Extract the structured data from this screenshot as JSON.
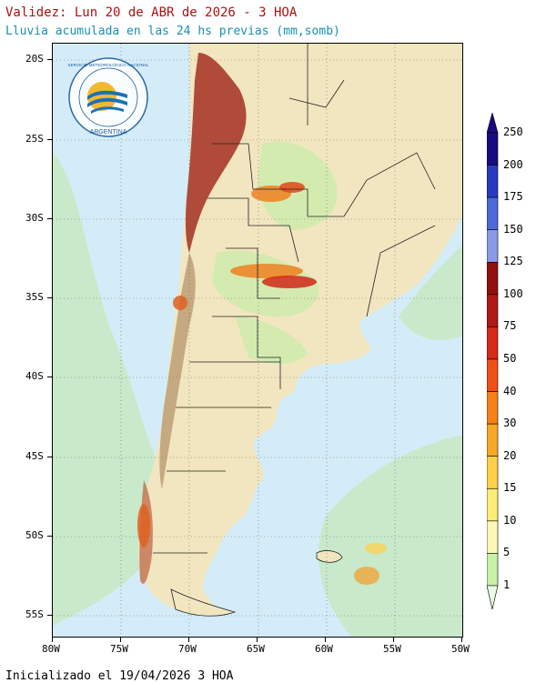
{
  "header": {
    "title": "Validez: Lun 20 de ABR de 2026 - 3 HOA",
    "subtitle": "Lluvia acumulada en las 24 hs previas (mm,somb)"
  },
  "footer": {
    "init_text": "Inicializado el 19/04/2026 3 HOA"
  },
  "logo": {
    "text_top": "SERVICIO METEOROLÓGICO NACIONAL",
    "text_bottom": "ARGENTINA"
  },
  "map": {
    "lat_labels": [
      "20S",
      "25S",
      "30S",
      "35S",
      "40S",
      "45S",
      "50S",
      "55S"
    ],
    "lon_labels": [
      "80W",
      "75W",
      "70W",
      "65W",
      "60W",
      "55W",
      "50W"
    ],
    "ocean_color": "#d6eef8",
    "land_color": "#f3e8c4",
    "mountain_color": "#8a2020"
  },
  "colorbar": {
    "labels": [
      "250",
      "200",
      "175",
      "150",
      "125",
      "100",
      "75",
      "50",
      "40",
      "30",
      "20",
      "15",
      "10",
      "5",
      "1"
    ],
    "colors": [
      "#1a0a80",
      "#2a3ac0",
      "#4d6ad8",
      "#8a9ae8",
      "#901010",
      "#b01818",
      "#d82818",
      "#f05018",
      "#f88018",
      "#f8a828",
      "#fcd048",
      "#fcec78",
      "#fcf8b8",
      "#c8f0a8",
      "#e8fae0"
    ]
  }
}
